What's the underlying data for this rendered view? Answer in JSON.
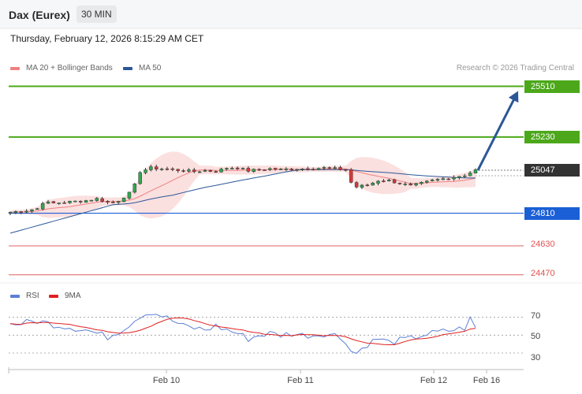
{
  "header": {
    "title": "Dax (Eurex)",
    "timeframe": "30 MIN"
  },
  "timestamp": "Thursday, February 12, 2026 8:15:29 AM CET",
  "legend": {
    "ma20_label": "MA 20 + Bollinger Bands",
    "ma20_color": "#f08080",
    "ma50_label": "MA 50",
    "ma50_color": "#2b5797",
    "credit": "Research © 2026 Trading Central"
  },
  "rsi_legend": {
    "rsi_label": "RSI",
    "rsi_color": "#5b7fd6",
    "ma_label": "9MA",
    "ma_color": "#e02020"
  },
  "levels": [
    {
      "label": "25510",
      "value": 25510,
      "style": "resistance-strong",
      "color": "#4ca81a"
    },
    {
      "label": "25230",
      "value": 25230,
      "style": "resistance-strong",
      "color": "#4ca81a"
    },
    {
      "label": "25047",
      "value": 25047,
      "style": "current",
      "color": "#333333"
    },
    {
      "label": "24810",
      "value": 24810,
      "style": "pivot",
      "color": "#1a5fd6"
    },
    {
      "label": "24630",
      "value": 24630,
      "style": "support",
      "color": "#e06060"
    },
    {
      "label": "24470",
      "value": 24470,
      "style": "support",
      "color": "#e06060"
    }
  ],
  "x_labels": [
    "Feb 10",
    "Feb 11",
    "Feb 12",
    "Feb 16"
  ],
  "rsi_levels": [
    "70",
    "50",
    "30"
  ],
  "chart_data": {
    "type": "candlestick",
    "price_range": [
      24430,
      25560
    ],
    "rsi_range": [
      15,
      90
    ],
    "n_bars": 87,
    "anchors": [
      [
        0,
        24815
      ],
      [
        3,
        24825
      ],
      [
        5,
        24835
      ],
      [
        6,
        24870
      ],
      [
        8,
        24865
      ],
      [
        12,
        24875
      ],
      [
        14,
        24880
      ],
      [
        16,
        24890
      ],
      [
        18,
        24870
      ],
      [
        19,
        24870
      ],
      [
        20,
        24880
      ],
      [
        22,
        24920
      ],
      [
        23,
        24965
      ],
      [
        24,
        25040
      ],
      [
        26,
        25060
      ],
      [
        28,
        25055
      ],
      [
        30,
        25050
      ],
      [
        32,
        25045
      ],
      [
        34,
        25040
      ],
      [
        36,
        25045
      ],
      [
        38,
        25040
      ],
      [
        40,
        25060
      ],
      [
        42,
        25060
      ],
      [
        44,
        25045
      ],
      [
        46,
        25050
      ],
      [
        48,
        25055
      ],
      [
        50,
        25050
      ],
      [
        52,
        25055
      ],
      [
        54,
        25055
      ],
      [
        58,
        25060
      ],
      [
        60,
        25055
      ],
      [
        62,
        25050
      ],
      [
        63,
        24980
      ],
      [
        64,
        24955
      ],
      [
        66,
        24965
      ],
      [
        68,
        24990
      ],
      [
        70,
        24990
      ],
      [
        72,
        24975
      ],
      [
        74,
        24960
      ],
      [
        76,
        24975
      ],
      [
        78,
        24990
      ],
      [
        80,
        25000
      ],
      [
        82,
        25010
      ],
      [
        84,
        25020
      ],
      [
        86,
        25047
      ]
    ],
    "rsi_anchors": [
      [
        0,
        62
      ],
      [
        3,
        64
      ],
      [
        5,
        66
      ],
      [
        8,
        62
      ],
      [
        10,
        60
      ],
      [
        12,
        58
      ],
      [
        14,
        56
      ],
      [
        16,
        52
      ],
      [
        18,
        48
      ],
      [
        20,
        54
      ],
      [
        22,
        62
      ],
      [
        24,
        72
      ],
      [
        26,
        76
      ],
      [
        28,
        72
      ],
      [
        30,
        66
      ],
      [
        32,
        60
      ],
      [
        34,
        58
      ],
      [
        36,
        56
      ],
      [
        38,
        60
      ],
      [
        40,
        56
      ],
      [
        42,
        52
      ],
      [
        44,
        46
      ],
      [
        46,
        50
      ],
      [
        48,
        52
      ],
      [
        50,
        50
      ],
      [
        52,
        52
      ],
      [
        54,
        50
      ],
      [
        56,
        50
      ],
      [
        58,
        52
      ],
      [
        60,
        50
      ],
      [
        62,
        44
      ],
      [
        63,
        32
      ],
      [
        64,
        30
      ],
      [
        66,
        40
      ],
      [
        68,
        46
      ],
      [
        70,
        42
      ],
      [
        72,
        44
      ],
      [
        74,
        46
      ],
      [
        76,
        50
      ],
      [
        78,
        52
      ],
      [
        80,
        54
      ],
      [
        82,
        56
      ],
      [
        84,
        58
      ],
      [
        85,
        68
      ],
      [
        86,
        58
      ]
    ],
    "target_arrow": {
      "from": 25047,
      "to": 25510
    }
  }
}
